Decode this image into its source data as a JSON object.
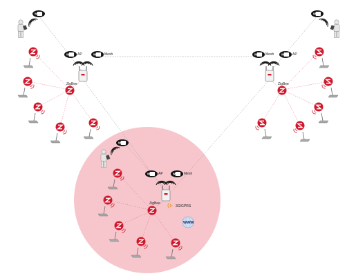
{
  "labels": {
    "wifi": "Wi Fi",
    "ap": "AP",
    "mesh": "Mesh",
    "zigbee": "ZigBee",
    "cellular": "3G/GPRS",
    "www": "WWW",
    "zigbee_logo": "Z"
  },
  "colors": {
    "zone": "#f7c6cc",
    "zigbee_red": "#d0182c",
    "zigbee_link": "#e07080",
    "mesh_link": "#8a8a8a",
    "wifi_badge": "#111111",
    "cellular": "#e8901a"
  },
  "icons": {
    "user": "person-with-tablet-icon",
    "router": "mesh-router-icon",
    "sensor": "zigbee-sensor-node-icon",
    "wifi": "wifi-badge-icon",
    "internet": "www-globe-icon"
  }
}
